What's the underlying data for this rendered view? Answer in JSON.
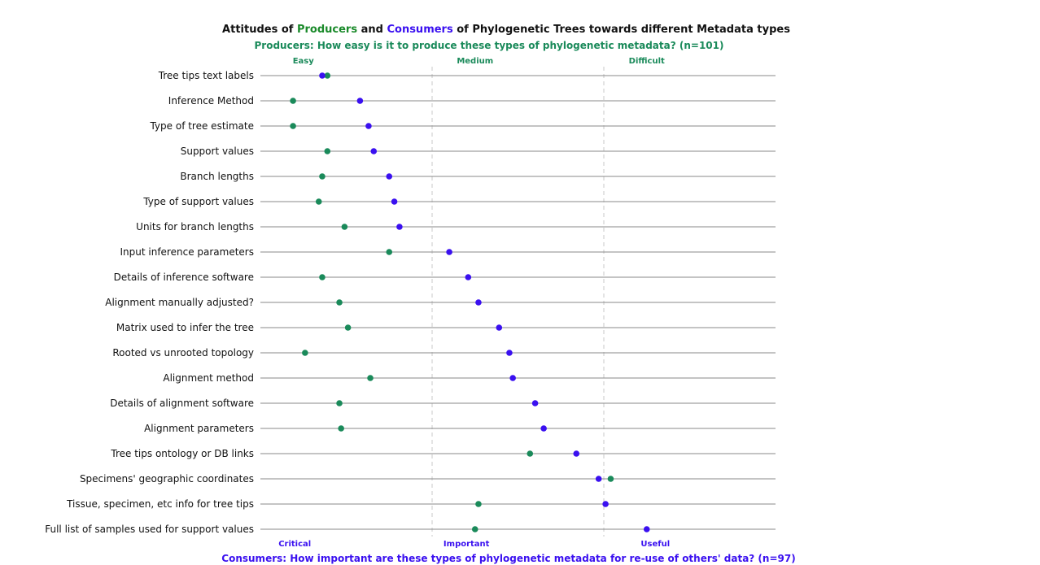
{
  "chart_data": {
    "type": "scatter",
    "title": {
      "parts": [
        "Attitudes of ",
        "Producers",
        " and ",
        "Consumers",
        " of Phylogenetic Trees towards different Metadata types"
      ]
    },
    "producers_subtitle": "Producers: How easy is it to produce these types of phylogenetic metadata? (n=101)",
    "consumers_subtitle": "Consumers: How important are these types of phylogenetic metadata for re-use of others' data? (n=97)",
    "top_axis_labels": [
      "Easy",
      "Medium",
      "Difficult"
    ],
    "bottom_axis_labels": [
      "Critical",
      "Important",
      "Useful"
    ],
    "xlim": [
      0,
      3
    ],
    "grid": "vertical dashed dividers at 1 and 2",
    "categories": [
      "Tree tips text labels",
      "Inference Method",
      "Type of tree estimate",
      "Support values",
      "Branch lengths",
      "Type of support values",
      "Units for branch lengths",
      "Input inference parameters",
      "Details of inference software",
      "Alignment manually adjusted?",
      "Matrix used to infer the tree",
      "Rooted vs unrooted topology",
      "Alignment method",
      "Details of alignment software",
      "Alignment parameters",
      "Tree tips ontology or DB links",
      "Specimens' geographic coordinates",
      "Tissue, specimen, etc info for tree tips",
      "Full list of samples used for support values"
    ],
    "series": [
      {
        "name": "Producers",
        "color": "#1a8a5a",
        "values": [
          0.39,
          0.19,
          0.19,
          0.39,
          0.36,
          0.34,
          0.49,
          0.75,
          0.36,
          0.46,
          0.51,
          0.26,
          0.64,
          0.46,
          0.47,
          1.57,
          2.04,
          1.27,
          1.25
        ]
      },
      {
        "name": "Consumers",
        "color": "#3a10f0",
        "values": [
          0.36,
          0.58,
          0.63,
          0.66,
          0.75,
          0.78,
          0.81,
          1.1,
          1.21,
          1.27,
          1.39,
          1.45,
          1.47,
          1.6,
          1.65,
          1.84,
          1.97,
          2.01,
          2.25
        ]
      }
    ]
  }
}
